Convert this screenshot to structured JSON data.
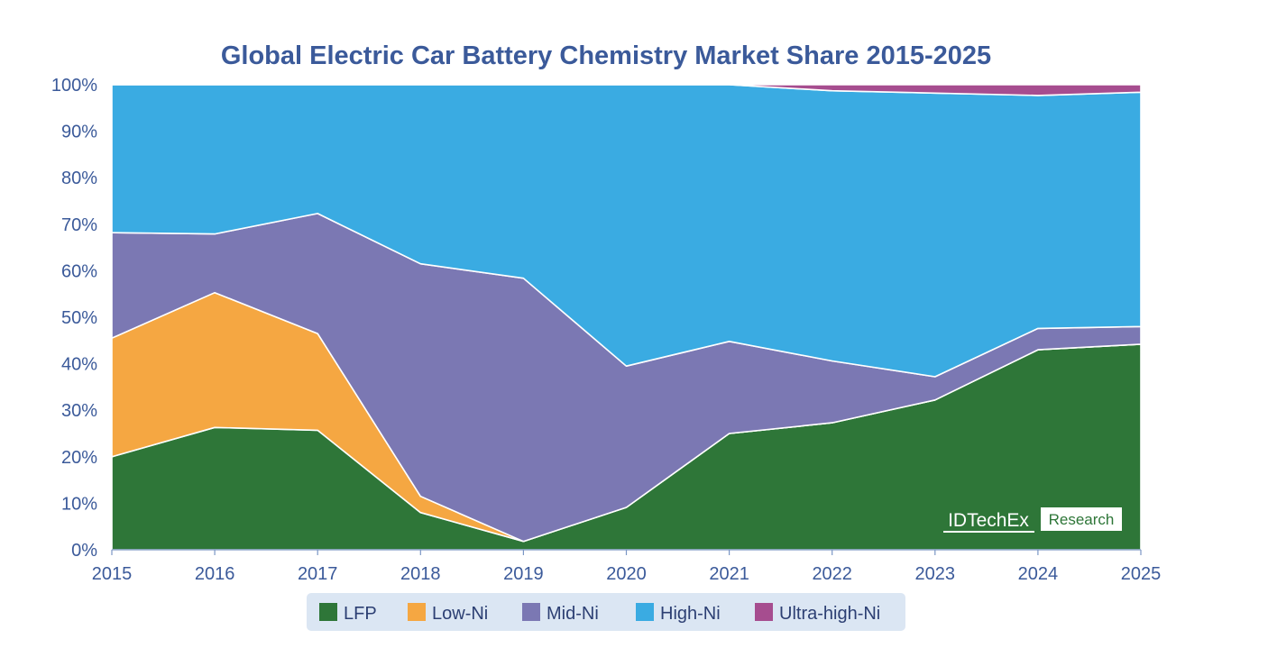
{
  "chart_data": {
    "type": "area",
    "stacked": true,
    "title": "Global Electric Car Battery Chemistry Market Share 2015-2025",
    "xlabel": "",
    "ylabel": "",
    "x": [
      2015,
      2016,
      2017,
      2018,
      2019,
      2020,
      2021,
      2022,
      2023,
      2024,
      2025
    ],
    "x_tick_labels": [
      "2015",
      "2016",
      "2017",
      "2018",
      "2019",
      "2020",
      "2021",
      "2022",
      "2023",
      "2024",
      "2025"
    ],
    "ylim": [
      0,
      100
    ],
    "y_ticks": [
      0,
      10,
      20,
      30,
      40,
      50,
      60,
      70,
      80,
      90,
      100
    ],
    "y_tick_labels": [
      "0%",
      "10%",
      "20%",
      "30%",
      "40%",
      "50%",
      "60%",
      "70%",
      "80%",
      "90%",
      "100%"
    ],
    "grid": false,
    "legend_position": "bottom",
    "series": [
      {
        "name": "LFP",
        "color": "#2e7638",
        "values": [
          20.0,
          26.3,
          25.7,
          8.0,
          1.8,
          9.1,
          25.0,
          27.3,
          32.2,
          43.0,
          44.2
        ]
      },
      {
        "name": "Low-Ni",
        "color": "#f5a742",
        "values": [
          25.5,
          29.0,
          20.8,
          3.5,
          0,
          0,
          0,
          0,
          0,
          0,
          0
        ]
      },
      {
        "name": "Mid-Ni",
        "color": "#7b78b3",
        "values": [
          22.7,
          12.6,
          25.8,
          50.0,
          56.6,
          30.4,
          19.8,
          13.3,
          5.0,
          4.6,
          3.8
        ]
      },
      {
        "name": "High-Ni",
        "color": "#3aabe2",
        "values": [
          31.8,
          32.1,
          27.7,
          38.5,
          41.6,
          60.5,
          55.2,
          58.1,
          61.0,
          50.1,
          50.4
        ]
      },
      {
        "name": "Ultra-high-Ni",
        "color": "#a64d8f",
        "values": [
          0,
          0,
          0,
          0,
          0,
          0,
          0,
          1.3,
          1.8,
          2.3,
          1.6
        ]
      }
    ]
  },
  "watermark": {
    "brand": "IDTechEx",
    "tagline": "Research"
  },
  "colors": {
    "title": "#3b5a9a",
    "axis_text": "#3b5a9a",
    "legend_background": "#dbe6f3",
    "logo_green": "#2e7638"
  }
}
